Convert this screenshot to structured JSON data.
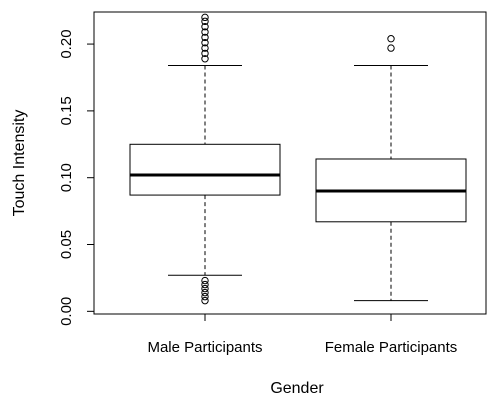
{
  "chart_data": {
    "type": "box",
    "xlabel": "Gender",
    "ylabel": "Touch Intensity",
    "ylim": [
      -0.002,
      0.224
    ],
    "yticks": [
      0.0,
      0.05,
      0.1,
      0.15,
      0.2
    ],
    "ytick_labels": [
      "0.00",
      "0.05",
      "0.10",
      "0.15",
      "0.20"
    ],
    "grid": false,
    "categories": [
      "Male Participants",
      "Female Participants"
    ],
    "boxes": [
      {
        "label": "Male Participants",
        "whisker_low": 0.027,
        "q1": 0.087,
        "median": 0.102,
        "q3": 0.125,
        "whisker_high": 0.184,
        "outliers": [
          0.008,
          0.011,
          0.014,
          0.017,
          0.02,
          0.023,
          0.189,
          0.193,
          0.197,
          0.201,
          0.205,
          0.209,
          0.213,
          0.217,
          0.22
        ]
      },
      {
        "label": "Female Participants",
        "whisker_low": 0.008,
        "q1": 0.067,
        "median": 0.09,
        "q3": 0.114,
        "whisker_high": 0.184,
        "outliers": [
          0.197,
          0.204
        ]
      }
    ]
  }
}
